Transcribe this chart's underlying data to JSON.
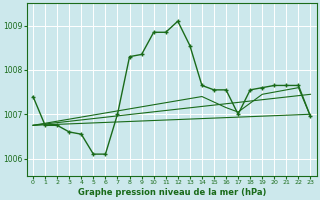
{
  "background_color": "#cce8ec",
  "grid_color": "#ffffff",
  "line_color": "#1a6b1a",
  "title": "Graphe pression niveau de la mer (hPa)",
  "xlim": [
    -0.5,
    23.5
  ],
  "ylim": [
    1005.6,
    1009.5
  ],
  "yticks": [
    1006,
    1007,
    1008,
    1009
  ],
  "xticks": [
    0,
    1,
    2,
    3,
    4,
    5,
    6,
    7,
    8,
    9,
    10,
    11,
    12,
    13,
    14,
    15,
    16,
    17,
    18,
    19,
    20,
    21,
    22,
    23
  ],
  "series1_x": [
    0,
    1,
    2,
    3,
    4,
    5,
    6,
    7,
    8,
    9,
    10,
    11,
    12,
    13,
    14,
    15,
    16,
    17,
    18,
    19,
    20,
    21,
    22,
    23
  ],
  "series1_y": [
    1007.4,
    1006.75,
    1006.75,
    1006.6,
    1006.55,
    1006.1,
    1006.1,
    1007.0,
    1008.3,
    1008.35,
    1008.85,
    1008.85,
    1009.1,
    1008.55,
    1007.65,
    1007.55,
    1007.55,
    1007.0,
    1007.55,
    1007.6,
    1007.65,
    1007.65,
    1007.65,
    1006.95
  ],
  "series2_x": [
    0,
    23
  ],
  "series2_y": [
    1006.75,
    1007.0
  ],
  "series3_x": [
    0,
    23
  ],
  "series3_y": [
    1006.75,
    1007.45
  ],
  "series4_x": [
    0,
    14,
    16,
    17,
    19,
    20,
    21,
    22,
    23
  ],
  "series4_y": [
    1006.75,
    1007.4,
    1007.15,
    1007.05,
    1007.45,
    1007.5,
    1007.55,
    1007.6,
    1006.95
  ]
}
